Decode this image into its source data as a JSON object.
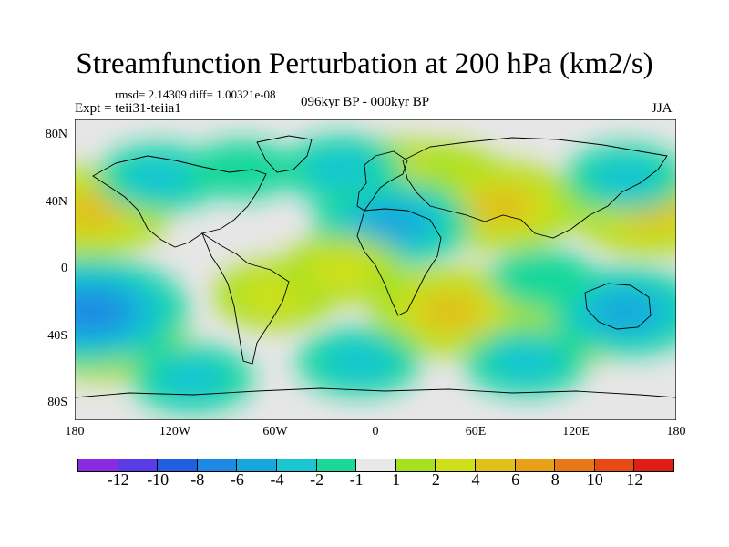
{
  "header": {
    "title": "Streamfunction Perturbation at 200 hPa (km2/s)",
    "stats": "rmsd= 2.14309 diff= 1.00321e-08",
    "experiment": "Expt = teii31-teiia1",
    "period": "096kyr BP - 000kyr BP",
    "season": "JJA"
  },
  "axes": {
    "y_ticks": [
      "80N",
      "40N",
      "0",
      "40S",
      "80S"
    ],
    "x_ticks": [
      "180",
      "120W",
      "60W",
      "0",
      "60E",
      "120E",
      "180"
    ]
  },
  "colorbar": {
    "levels": [
      "-12",
      "-10",
      "-8",
      "-6",
      "-4",
      "-2",
      "-1",
      "1",
      "2",
      "4",
      "6",
      "8",
      "10",
      "12"
    ],
    "colors": [
      "#8a2be2",
      "#5a3ce6",
      "#2060e0",
      "#1e88e5",
      "#16a8dc",
      "#19c6d2",
      "#19d89a",
      "#e8e8e8",
      "#a6e01e",
      "#cfe01a",
      "#e0c01a",
      "#e8a018",
      "#e87816",
      "#e84a14",
      "#e01e14"
    ]
  },
  "chart_data": {
    "type": "heatmap",
    "title": "Streamfunction Perturbation at 200 hPa (km2/s)",
    "x_range": [
      -180,
      180
    ],
    "y_range": [
      -90,
      90
    ],
    "xlabel": "",
    "ylabel": "",
    "anomalies": [
      {
        "lon": 35,
        "lat": 50,
        "value": 4
      },
      {
        "lon": 10,
        "lat": 58,
        "value": 2
      },
      {
        "lon": 75,
        "lat": 38,
        "value": 4
      },
      {
        "lon": 165,
        "lat": 35,
        "value": 4
      },
      {
        "lon": -170,
        "lat": 35,
        "value": 4
      },
      {
        "lon": -160,
        "lat": -40,
        "value": 4
      },
      {
        "lon": 45,
        "lat": -25,
        "value": 4
      },
      {
        "lon": -60,
        "lat": -15,
        "value": 2
      },
      {
        "lon": 120,
        "lat": -35,
        "value": 2
      },
      {
        "lon": 150,
        "lat": -25,
        "value": -4
      },
      {
        "lon": -170,
        "lat": -25,
        "value": -6
      },
      {
        "lon": -110,
        "lat": -65,
        "value": -2
      },
      {
        "lon": -130,
        "lat": 55,
        "value": -2
      },
      {
        "lon": -80,
        "lat": 60,
        "value": -1
      },
      {
        "lon": -20,
        "lat": 60,
        "value": -2
      },
      {
        "lon": 10,
        "lat": 28,
        "value": -4
      },
      {
        "lon": 150,
        "lat": 55,
        "value": -2
      },
      {
        "lon": -10,
        "lat": -55,
        "value": -2
      },
      {
        "lon": 90,
        "lat": -55,
        "value": -2
      },
      {
        "lon": 100,
        "lat": -5,
        "value": -1
      },
      {
        "lon": -20,
        "lat": 0,
        "value": 2
      }
    ]
  }
}
